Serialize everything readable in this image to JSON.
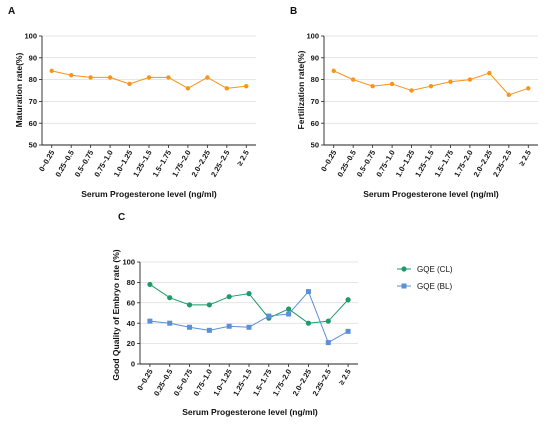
{
  "colors": {
    "orange": "#f7941d",
    "green": "#1f9a6a",
    "blue": "#5b8fd6",
    "axis": "#222222",
    "grid": "#cccccc"
  },
  "chart_data": [
    {
      "panel": "A",
      "type": "line",
      "categories": [
        "0~0.25",
        "0.25~0.5",
        "0.5~0.75",
        "0.75~1.0",
        "1.0~1.25",
        "1.25~1.5",
        "1.5~1.75",
        "1.75~2.0",
        "2.0~2.25",
        "2.25~2.5",
        "≥ 2.5"
      ],
      "series": [
        {
          "values": [
            84,
            82,
            81,
            81,
            78,
            81,
            81,
            76,
            81,
            76,
            77
          ]
        }
      ],
      "xlabel": "Serum Progesterone level (ng/ml)",
      "ylabel": "Maturation rate(%)",
      "ylim": [
        50,
        100
      ],
      "yticks": [
        "50",
        "60",
        "70",
        "80",
        "90",
        "100"
      ],
      "grid": "horizontal"
    },
    {
      "panel": "B",
      "type": "line",
      "categories": [
        "0~0.25",
        "0.25~0.5",
        "0.5~0.75",
        "0.75~1.0",
        "1.0~1.25",
        "1.25~1.5",
        "1.5~1.75",
        "1.75~2.0",
        "2.0~2.25",
        "2.25~2.5",
        "≥ 2.5"
      ],
      "series": [
        {
          "values": [
            84,
            80,
            77,
            78,
            75,
            77,
            79,
            80,
            83,
            73,
            76
          ]
        }
      ],
      "xlabel": "Serum Progesterone level (ng/ml)",
      "ylabel": "Fertilization rate(%)",
      "ylim": [
        50,
        100
      ],
      "yticks": [
        "50",
        "60",
        "70",
        "80",
        "90",
        "100"
      ],
      "grid": "horizontal"
    },
    {
      "panel": "C",
      "type": "line",
      "categories": [
        "0~0.25",
        "0.25~0.5",
        "0.5~0.75",
        "0.75~1.0",
        "1.0~1.25",
        "1.25~1.5",
        "1.5~1.75",
        "1.75~2.0",
        "2.0~2.25",
        "2.25~2.5",
        "≥ 2.5"
      ],
      "series": [
        {
          "name": "GQE (CL)",
          "marker": "circle",
          "values": [
            78,
            65,
            58,
            58,
            66,
            69,
            45,
            54,
            40,
            42,
            63
          ]
        },
        {
          "name": "GQE (BL)",
          "marker": "square",
          "values": [
            42,
            40,
            36,
            33,
            37,
            36,
            47,
            49,
            71,
            21,
            32
          ]
        }
      ],
      "xlabel": "Serum Progesterone level (ng/ml)",
      "ylabel": "Good Quality of Embryo rate (%)",
      "ylim": [
        0,
        100
      ],
      "yticks": [
        "0",
        "20",
        "40",
        "60",
        "80",
        "100"
      ],
      "grid": "horizontal",
      "legend": "right"
    }
  ]
}
